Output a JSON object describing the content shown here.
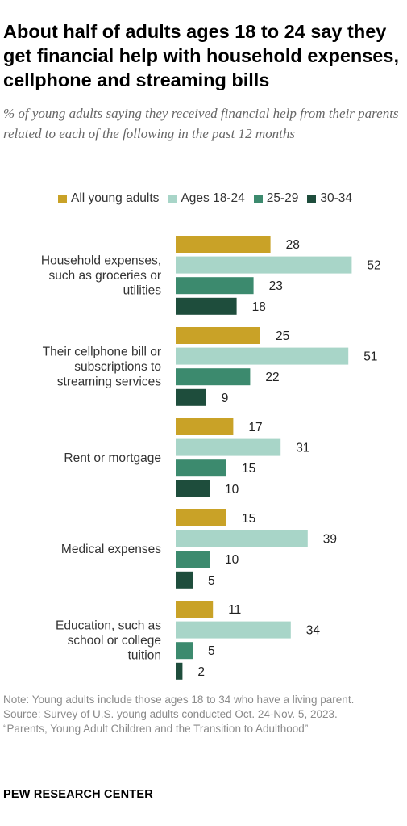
{
  "title": "About half of adults ages 18 to 24 say they get financial help with household expenses, cellphone and streaming bills",
  "subtitle": "% of young adults saying they received financial help from their parents related to each of the following in the past 12 months",
  "chart_data": {
    "type": "bar",
    "orientation": "horizontal",
    "categories": [
      [
        "Household expenses,",
        "such as groceries or",
        "utilities"
      ],
      [
        "Their cellphone bill or",
        "subscriptions to",
        "streaming services"
      ],
      [
        "Rent or mortgage"
      ],
      [
        "Medical expenses"
      ],
      [
        "Education, such as",
        "school or college",
        "tuition"
      ]
    ],
    "series": [
      {
        "name": "All young adults",
        "color": "#c9a227",
        "values": [
          28,
          25,
          17,
          15,
          11
        ]
      },
      {
        "name": "Ages 18-24",
        "color": "#a8d5c8",
        "values": [
          52,
          51,
          31,
          39,
          34
        ]
      },
      {
        "name": "25-29",
        "color": "#3c8a6e",
        "values": [
          23,
          22,
          15,
          10,
          5
        ]
      },
      {
        "name": "30-34",
        "color": "#1e4d3c",
        "values": [
          18,
          9,
          10,
          5,
          2
        ]
      }
    ],
    "legend_position": "top",
    "data_labels": true,
    "grid": false
  },
  "notes": [
    "Note: Young adults include those ages 18 to 34 who have a living parent.",
    "Source: Survey of U.S. young adults conducted Oct. 24-Nov. 5, 2023.",
    "“Parents, Young Adult Children and the Transition to Adulthood”"
  ],
  "org": "PEW RESEARCH CENTER"
}
